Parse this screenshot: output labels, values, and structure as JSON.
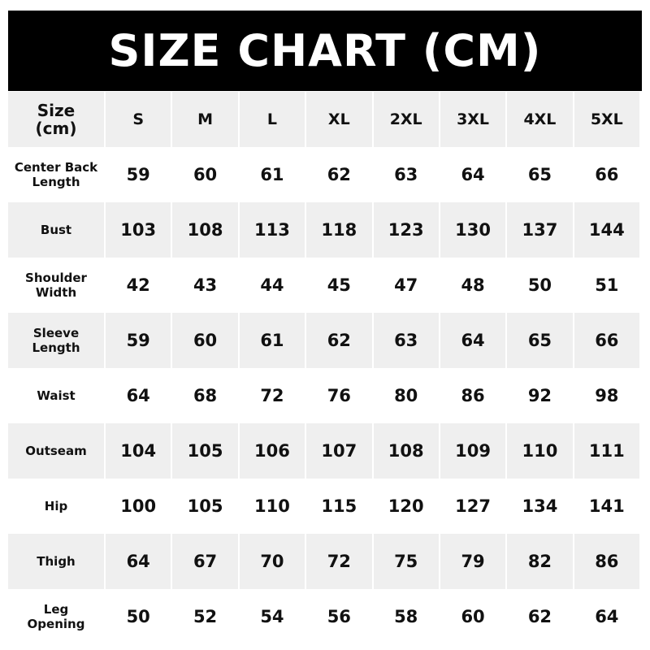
{
  "title": "SIZE CHART (CM)",
  "header": {
    "label": "Size\n(cm)",
    "sizes": [
      "S",
      "M",
      "L",
      "XL",
      "2XL",
      "3XL",
      "4XL",
      "5XL"
    ]
  },
  "rows": [
    {
      "label": "Center Back\nLength",
      "values": [
        "59",
        "60",
        "61",
        "62",
        "63",
        "64",
        "65",
        "66"
      ]
    },
    {
      "label": "Bust",
      "values": [
        "103",
        "108",
        "113",
        "118",
        "123",
        "130",
        "137",
        "144"
      ]
    },
    {
      "label": "Shoulder\nWidth",
      "values": [
        "42",
        "43",
        "44",
        "45",
        "47",
        "48",
        "50",
        "51"
      ]
    },
    {
      "label": "Sleeve\nLength",
      "values": [
        "59",
        "60",
        "61",
        "62",
        "63",
        "64",
        "65",
        "66"
      ]
    },
    {
      "label": "Waist",
      "values": [
        "64",
        "68",
        "72",
        "76",
        "80",
        "86",
        "92",
        "98"
      ]
    },
    {
      "label": "Outseam",
      "values": [
        "104",
        "105",
        "106",
        "107",
        "108",
        "109",
        "110",
        "111"
      ]
    },
    {
      "label": "Hip",
      "values": [
        "100",
        "105",
        "110",
        "115",
        "120",
        "127",
        "134",
        "141"
      ]
    },
    {
      "label": "Thigh",
      "values": [
        "64",
        "67",
        "70",
        "72",
        "75",
        "79",
        "82",
        "86"
      ]
    },
    {
      "label": "Leg\nOpening",
      "values": [
        "50",
        "52",
        "54",
        "56",
        "58",
        "60",
        "62",
        "64"
      ]
    }
  ],
  "colors": {
    "title_bg": "#000000",
    "title_text": "#ffffff",
    "stripe": "#efefef"
  }
}
